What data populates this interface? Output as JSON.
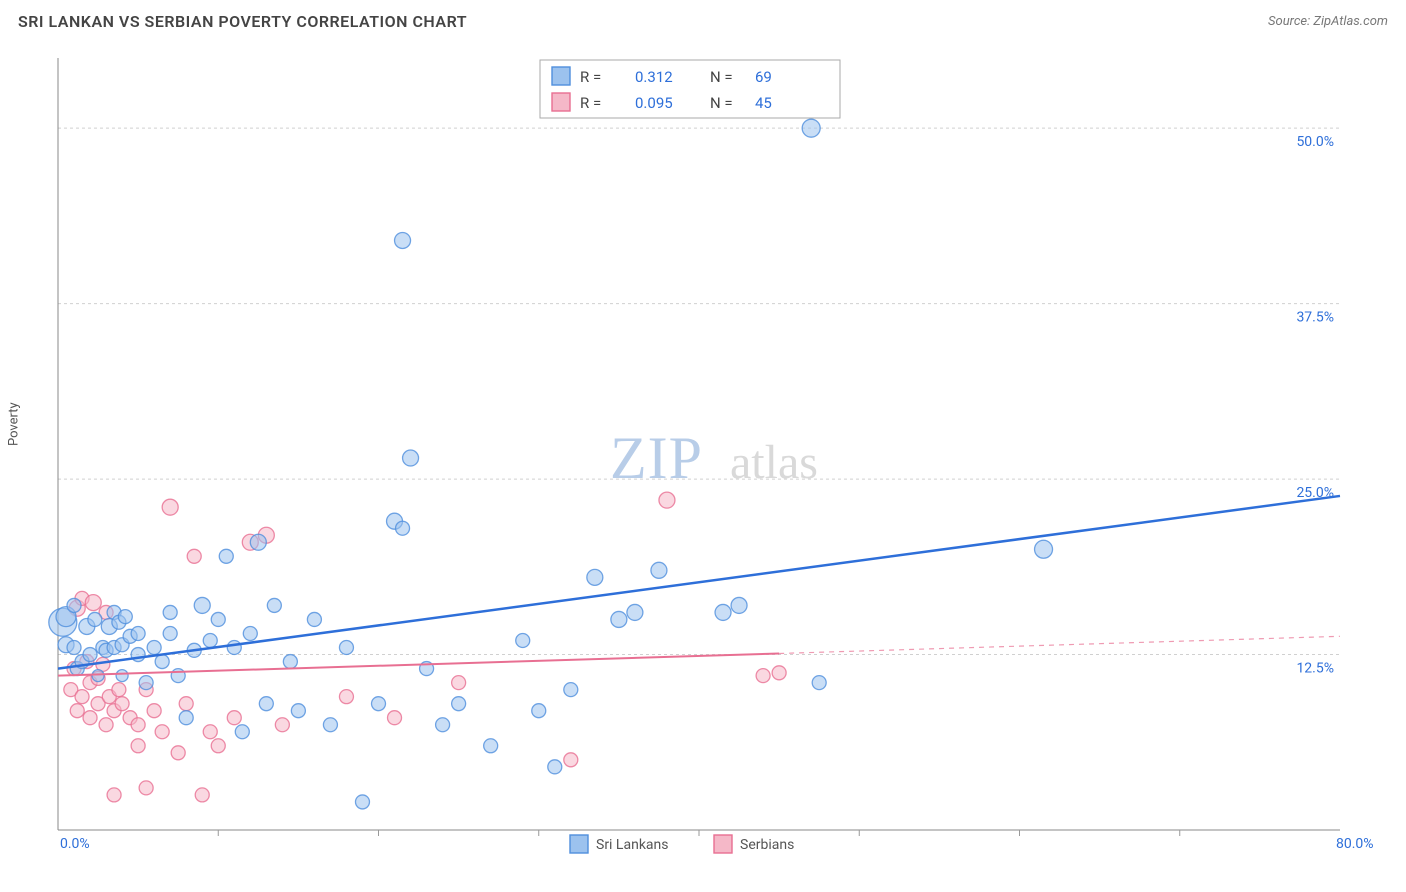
{
  "header": {
    "title": "SRI LANKAN VS SERBIAN POVERTY CORRELATION CHART",
    "source": "Source: ZipAtlas.com"
  },
  "ylabel": "Poverty",
  "watermark": {
    "part1": "ZIP",
    "part2": "atlas"
  },
  "chart": {
    "type": "scatter",
    "xlim": [
      0,
      80
    ],
    "ylim": [
      0,
      55
    ],
    "y_ticks": [
      {
        "v": 12.5,
        "label": "12.5%"
      },
      {
        "v": 25.0,
        "label": "25.0%"
      },
      {
        "v": 37.5,
        "label": "37.5%"
      },
      {
        "v": 50.0,
        "label": "50.0%"
      }
    ],
    "x_min_label": "0.0%",
    "x_max_label": "80.0%",
    "x_ticks_minor": [
      10,
      20,
      30,
      40,
      50,
      60,
      70
    ],
    "background_color": "#ffffff",
    "grid_color": "#d6d6d6",
    "series": [
      {
        "name": "Sri Lankans",
        "marker_fill": "#9cc2ee",
        "marker_stroke": "#4f8fdd",
        "marker_opacity": 0.55,
        "line_color": "#2e6fd9",
        "line_width": 2.5,
        "line_dash": "none",
        "R": "0.312",
        "N": "69",
        "trend": {
          "x1": 0,
          "y1": 11.5,
          "x2": 80,
          "y2": 23.8,
          "solid_until_x": 80
        },
        "points": [
          {
            "x": 0.3,
            "y": 14.8,
            "r": 14
          },
          {
            "x": 0.5,
            "y": 15.2,
            "r": 10
          },
          {
            "x": 0.5,
            "y": 13.2,
            "r": 8
          },
          {
            "x": 1.0,
            "y": 16.0,
            "r": 7
          },
          {
            "x": 1.0,
            "y": 13.0,
            "r": 7
          },
          {
            "x": 1.2,
            "y": 11.5,
            "r": 7
          },
          {
            "x": 1.5,
            "y": 12.0,
            "r": 7
          },
          {
            "x": 1.8,
            "y": 14.5,
            "r": 8
          },
          {
            "x": 2.0,
            "y": 12.5,
            "r": 7
          },
          {
            "x": 2.3,
            "y": 15.0,
            "r": 7
          },
          {
            "x": 2.5,
            "y": 11.0,
            "r": 6
          },
          {
            "x": 2.8,
            "y": 13.0,
            "r": 7
          },
          {
            "x": 3.0,
            "y": 12.8,
            "r": 7
          },
          {
            "x": 3.2,
            "y": 14.5,
            "r": 8
          },
          {
            "x": 3.5,
            "y": 13.0,
            "r": 7
          },
          {
            "x": 3.5,
            "y": 15.5,
            "r": 7
          },
          {
            "x": 3.8,
            "y": 14.8,
            "r": 7
          },
          {
            "x": 4.0,
            "y": 13.2,
            "r": 7
          },
          {
            "x": 4.0,
            "y": 11.0,
            "r": 6
          },
          {
            "x": 4.2,
            "y": 15.2,
            "r": 7
          },
          {
            "x": 4.5,
            "y": 13.8,
            "r": 7
          },
          {
            "x": 5.0,
            "y": 12.5,
            "r": 7
          },
          {
            "x": 5.0,
            "y": 14.0,
            "r": 7
          },
          {
            "x": 5.5,
            "y": 10.5,
            "r": 7
          },
          {
            "x": 6.0,
            "y": 13.0,
            "r": 7
          },
          {
            "x": 6.5,
            "y": 12.0,
            "r": 7
          },
          {
            "x": 7.0,
            "y": 14.0,
            "r": 7
          },
          {
            "x": 7.0,
            "y": 15.5,
            "r": 7
          },
          {
            "x": 7.5,
            "y": 11.0,
            "r": 7
          },
          {
            "x": 8.0,
            "y": 8.0,
            "r": 7
          },
          {
            "x": 8.5,
            "y": 12.8,
            "r": 7
          },
          {
            "x": 9.0,
            "y": 16.0,
            "r": 8
          },
          {
            "x": 9.5,
            "y": 13.5,
            "r": 7
          },
          {
            "x": 10.0,
            "y": 15.0,
            "r": 7
          },
          {
            "x": 10.5,
            "y": 19.5,
            "r": 7
          },
          {
            "x": 11.0,
            "y": 13.0,
            "r": 7
          },
          {
            "x": 11.5,
            "y": 7.0,
            "r": 7
          },
          {
            "x": 12.0,
            "y": 14.0,
            "r": 7
          },
          {
            "x": 12.5,
            "y": 20.5,
            "r": 8
          },
          {
            "x": 13.0,
            "y": 9.0,
            "r": 7
          },
          {
            "x": 13.5,
            "y": 16.0,
            "r": 7
          },
          {
            "x": 14.5,
            "y": 12.0,
            "r": 7
          },
          {
            "x": 15.0,
            "y": 8.5,
            "r": 7
          },
          {
            "x": 16.0,
            "y": 15.0,
            "r": 7
          },
          {
            "x": 17.0,
            "y": 7.5,
            "r": 7
          },
          {
            "x": 18.0,
            "y": 13.0,
            "r": 7
          },
          {
            "x": 19.0,
            "y": 2.0,
            "r": 7
          },
          {
            "x": 20.0,
            "y": 9.0,
            "r": 7
          },
          {
            "x": 21.0,
            "y": 22.0,
            "r": 8
          },
          {
            "x": 21.5,
            "y": 21.5,
            "r": 7
          },
          {
            "x": 22.0,
            "y": 26.5,
            "r": 8
          },
          {
            "x": 21.5,
            "y": 42.0,
            "r": 8
          },
          {
            "x": 23.0,
            "y": 11.5,
            "r": 7
          },
          {
            "x": 24.0,
            "y": 7.5,
            "r": 7
          },
          {
            "x": 25.0,
            "y": 9.0,
            "r": 7
          },
          {
            "x": 27.0,
            "y": 6.0,
            "r": 7
          },
          {
            "x": 29.0,
            "y": 13.5,
            "r": 7
          },
          {
            "x": 30.0,
            "y": 8.5,
            "r": 7
          },
          {
            "x": 31.0,
            "y": 4.5,
            "r": 7
          },
          {
            "x": 32.0,
            "y": 10.0,
            "r": 7
          },
          {
            "x": 33.5,
            "y": 18.0,
            "r": 8
          },
          {
            "x": 35.0,
            "y": 15.0,
            "r": 8
          },
          {
            "x": 36.0,
            "y": 15.5,
            "r": 8
          },
          {
            "x": 37.5,
            "y": 18.5,
            "r": 8
          },
          {
            "x": 41.5,
            "y": 15.5,
            "r": 8
          },
          {
            "x": 42.5,
            "y": 16.0,
            "r": 8
          },
          {
            "x": 47.0,
            "y": 50.0,
            "r": 9
          },
          {
            "x": 47.5,
            "y": 10.5,
            "r": 7
          },
          {
            "x": 61.5,
            "y": 20.0,
            "r": 9
          }
        ]
      },
      {
        "name": "Serbians",
        "marker_fill": "#f5b8c8",
        "marker_stroke": "#e86f92",
        "marker_opacity": 0.55,
        "line_color": "#e86f92",
        "line_width": 2,
        "line_dash": "dashed_after",
        "R": "0.095",
        "N": "45",
        "trend": {
          "x1": 0,
          "y1": 11.0,
          "x2": 80,
          "y2": 13.8,
          "solid_until_x": 45
        },
        "points": [
          {
            "x": 0.8,
            "y": 10.0,
            "r": 7
          },
          {
            "x": 1.0,
            "y": 11.5,
            "r": 7
          },
          {
            "x": 1.2,
            "y": 15.8,
            "r": 8
          },
          {
            "x": 1.2,
            "y": 8.5,
            "r": 7
          },
          {
            "x": 1.5,
            "y": 16.5,
            "r": 7
          },
          {
            "x": 1.5,
            "y": 9.5,
            "r": 7
          },
          {
            "x": 1.8,
            "y": 12.0,
            "r": 7
          },
          {
            "x": 2.0,
            "y": 10.5,
            "r": 7
          },
          {
            "x": 2.0,
            "y": 8.0,
            "r": 7
          },
          {
            "x": 2.2,
            "y": 16.2,
            "r": 8
          },
          {
            "x": 2.5,
            "y": 9.0,
            "r": 7
          },
          {
            "x": 2.5,
            "y": 10.8,
            "r": 7
          },
          {
            "x": 2.8,
            "y": 11.8,
            "r": 7
          },
          {
            "x": 3.0,
            "y": 15.5,
            "r": 7
          },
          {
            "x": 3.0,
            "y": 7.5,
            "r": 7
          },
          {
            "x": 3.2,
            "y": 9.5,
            "r": 7
          },
          {
            "x": 3.5,
            "y": 8.5,
            "r": 7
          },
          {
            "x": 3.5,
            "y": 2.5,
            "r": 7
          },
          {
            "x": 3.8,
            "y": 10.0,
            "r": 7
          },
          {
            "x": 4.0,
            "y": 9.0,
            "r": 7
          },
          {
            "x": 4.5,
            "y": 8.0,
            "r": 7
          },
          {
            "x": 5.0,
            "y": 7.5,
            "r": 7
          },
          {
            "x": 5.0,
            "y": 6.0,
            "r": 7
          },
          {
            "x": 5.5,
            "y": 10.0,
            "r": 7
          },
          {
            "x": 5.5,
            "y": 3.0,
            "r": 7
          },
          {
            "x": 6.0,
            "y": 8.5,
            "r": 7
          },
          {
            "x": 6.5,
            "y": 7.0,
            "r": 7
          },
          {
            "x": 7.0,
            "y": 23.0,
            "r": 8
          },
          {
            "x": 7.5,
            "y": 5.5,
            "r": 7
          },
          {
            "x": 8.0,
            "y": 9.0,
            "r": 7
          },
          {
            "x": 8.5,
            "y": 19.5,
            "r": 7
          },
          {
            "x": 9.0,
            "y": 2.5,
            "r": 7
          },
          {
            "x": 9.5,
            "y": 7.0,
            "r": 7
          },
          {
            "x": 10.0,
            "y": 6.0,
            "r": 7
          },
          {
            "x": 11.0,
            "y": 8.0,
            "r": 7
          },
          {
            "x": 12.0,
            "y": 20.5,
            "r": 8
          },
          {
            "x": 13.0,
            "y": 21.0,
            "r": 8
          },
          {
            "x": 14.0,
            "y": 7.5,
            "r": 7
          },
          {
            "x": 18.0,
            "y": 9.5,
            "r": 7
          },
          {
            "x": 21.0,
            "y": 8.0,
            "r": 7
          },
          {
            "x": 25.0,
            "y": 10.5,
            "r": 7
          },
          {
            "x": 32.0,
            "y": 5.0,
            "r": 7
          },
          {
            "x": 38.0,
            "y": 23.5,
            "r": 8
          },
          {
            "x": 44.0,
            "y": 11.0,
            "r": 7
          },
          {
            "x": 45.0,
            "y": 11.2,
            "r": 7
          }
        ]
      }
    ]
  },
  "legend_bottom": [
    {
      "label": "Sri Lankans",
      "fill": "#9cc2ee",
      "stroke": "#4f8fdd"
    },
    {
      "label": "Serbians",
      "fill": "#f5b8c8",
      "stroke": "#e86f92"
    }
  ]
}
